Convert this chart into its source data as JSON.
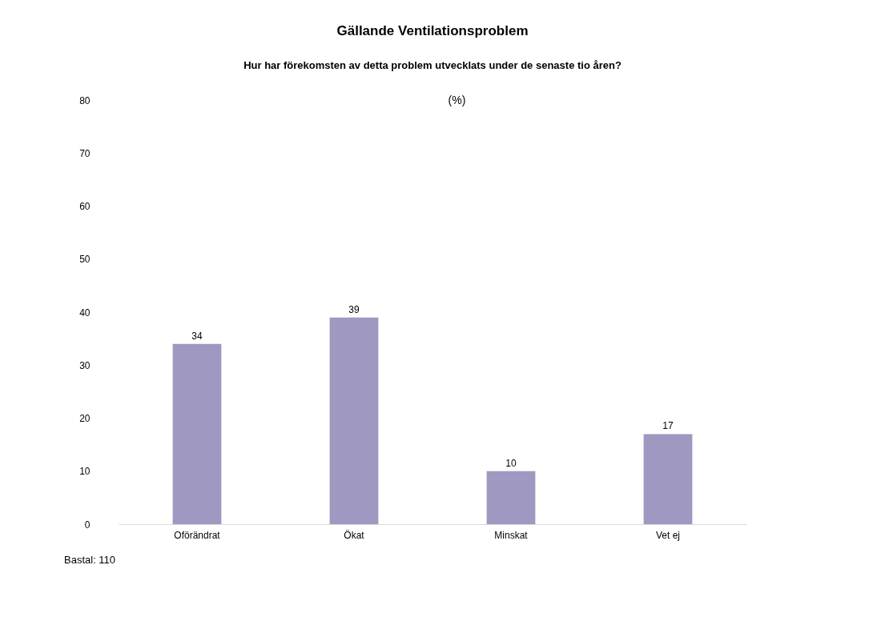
{
  "chart_data": {
    "type": "bar",
    "title": "Gällande Ventilationsproblem",
    "subtitle": "Hur har förekomsten av detta problem utvecklats under de senaste tio åren?",
    "ylabel": "(%)",
    "categories": [
      "Oförändrat",
      "Ökat",
      "Minskat",
      "Vet ej"
    ],
    "values": [
      34,
      39,
      10,
      17
    ],
    "color": "#9f98c0",
    "ylim": [
      0,
      80
    ],
    "yticks": [
      0,
      10,
      20,
      30,
      40,
      50,
      60,
      70,
      80
    ],
    "grid": false,
    "data_labels": true,
    "annotations": [
      "Bastal: 110"
    ]
  }
}
